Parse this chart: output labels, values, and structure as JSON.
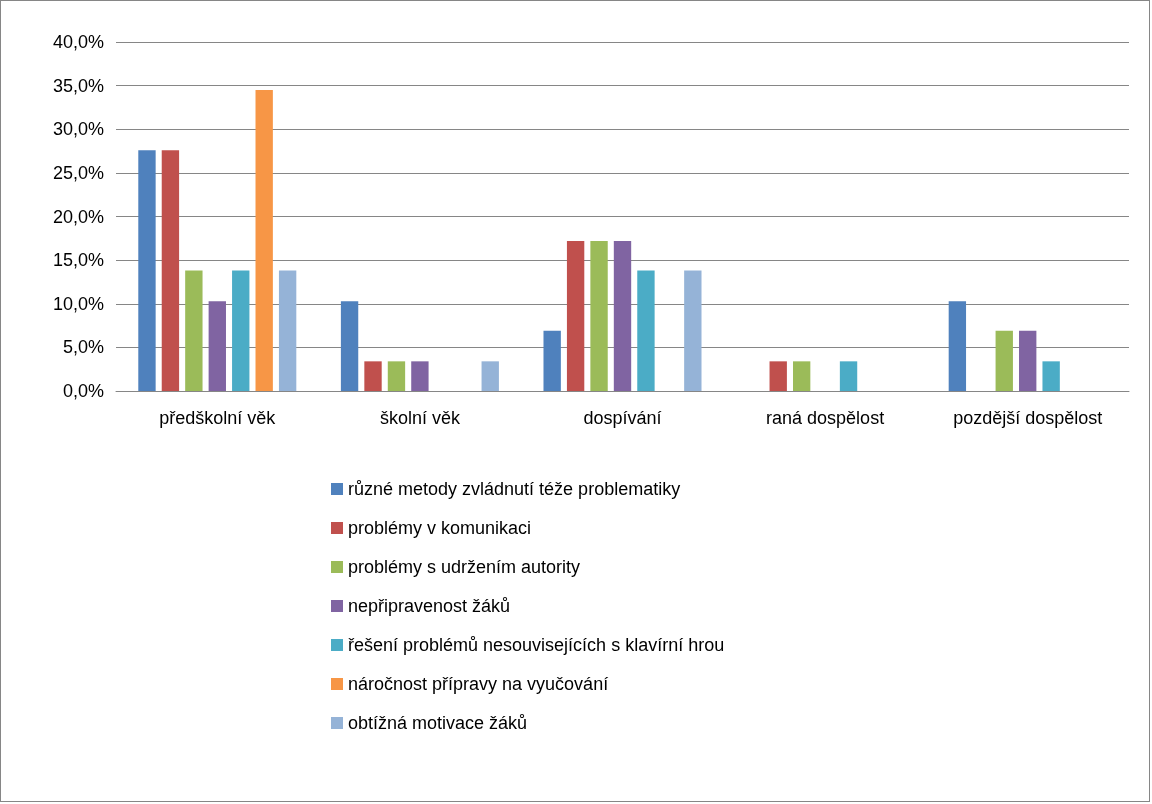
{
  "chart_data": {
    "type": "bar",
    "categories": [
      "předškolní věk",
      "školní věk",
      "dospívání",
      "raná dospělost",
      "pozdější dospělost"
    ],
    "series": [
      {
        "name": "různé metody zvládnutí téže problematiky",
        "color": "#4f81bd",
        "values": [
          27.6,
          10.3,
          6.9,
          0,
          10.3
        ]
      },
      {
        "name": "problémy v komunikaci",
        "color": "#c0504d",
        "values": [
          27.6,
          3.4,
          17.2,
          3.4,
          0
        ]
      },
      {
        "name": "problémy s udržením autority",
        "color": "#9bbb59",
        "values": [
          13.8,
          3.4,
          17.2,
          3.4,
          6.9
        ]
      },
      {
        "name": "nepřipravenost žáků",
        "color": "#8064a2",
        "values": [
          10.3,
          3.4,
          17.2,
          0,
          6.9
        ]
      },
      {
        "name": "řešení problémů nesouvisejících s klavírní hrou",
        "color": "#4bacc6",
        "values": [
          13.8,
          0,
          13.8,
          3.4,
          3.4
        ]
      },
      {
        "name": "náročnost přípravy na vyučování",
        "color": "#f79646",
        "values": [
          34.5,
          0,
          0,
          0,
          0
        ]
      },
      {
        "name": "obtížná motivace žáků",
        "color": "#95b3d7",
        "values": [
          13.8,
          3.4,
          13.8,
          0,
          0
        ]
      }
    ],
    "ylim": [
      0,
      40
    ],
    "yticks": [
      {
        "value": 0,
        "label": "0,0%"
      },
      {
        "value": 5,
        "label": "5,0%"
      },
      {
        "value": 10,
        "label": "10,0%"
      },
      {
        "value": 15,
        "label": "15,0%"
      },
      {
        "value": 20,
        "label": "20,0%"
      },
      {
        "value": 25,
        "label": "25,0%"
      },
      {
        "value": 30,
        "label": "30,0%"
      },
      {
        "value": 35,
        "label": "35,0%"
      },
      {
        "value": 40,
        "label": "40,0%"
      }
    ],
    "grid": "y",
    "legend": "bottom"
  }
}
